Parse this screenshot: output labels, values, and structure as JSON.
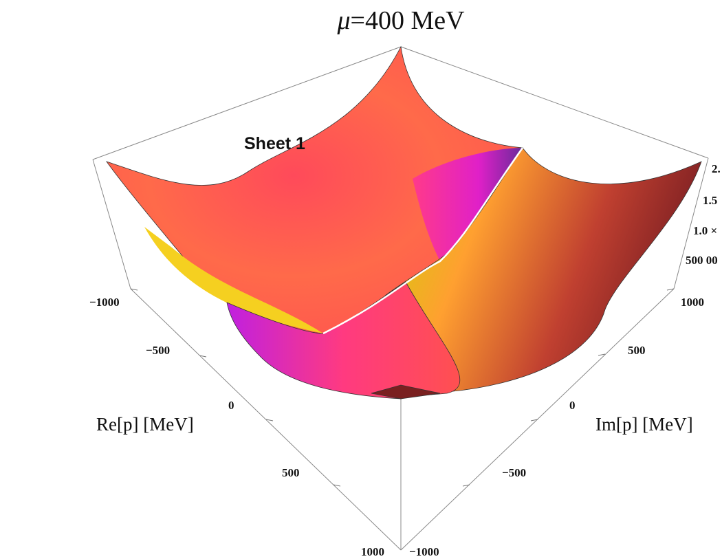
{
  "chart_data": {
    "type": "surface3d",
    "title_symbol": "μ",
    "title_rest": "=400 MeV",
    "annotation": "Sheet 1",
    "xlabel": "Re[p] [MeV]",
    "ylabel": "Im[p] [MeV]",
    "x_ticks": [
      "−1000",
      "−500",
      "0",
      "500",
      "1000"
    ],
    "y_ticks": [
      "1000",
      "500",
      "0",
      "−500",
      "−1000"
    ],
    "z_ticks": [
      "500 00",
      "1.0 ×",
      "1.5",
      "2."
    ],
    "xlim": [
      -1000,
      1000
    ],
    "ylim": [
      -1000,
      1000
    ],
    "colors": {
      "main": "#ff5a4e",
      "pink": "#ff2fa0",
      "purple": "#c828d8",
      "yellow": "#e6e600",
      "dark": "#7a1e1e"
    }
  }
}
